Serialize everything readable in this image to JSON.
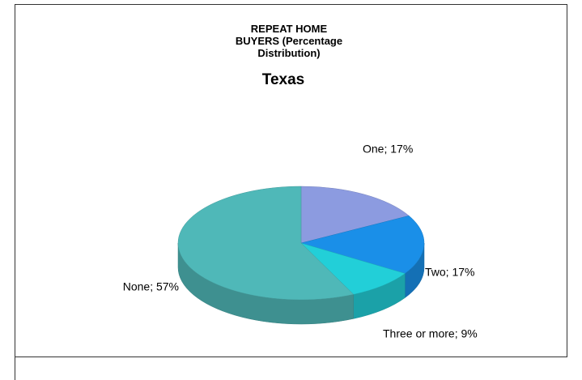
{
  "chart_data": {
    "type": "pie",
    "title": "REPEAT HOME BUYERS (Percentage Distribution)",
    "subtitle": "Texas",
    "values": [
      17,
      17,
      9,
      57
    ],
    "value_labels": [
      "One; 17%",
      "Two; 17%",
      "Three or more; 9%",
      "None; 57%"
    ],
    "colors": [
      "#8c9be0",
      "#1a8fe8",
      "#22cfd8",
      "#4fb8b8"
    ]
  }
}
